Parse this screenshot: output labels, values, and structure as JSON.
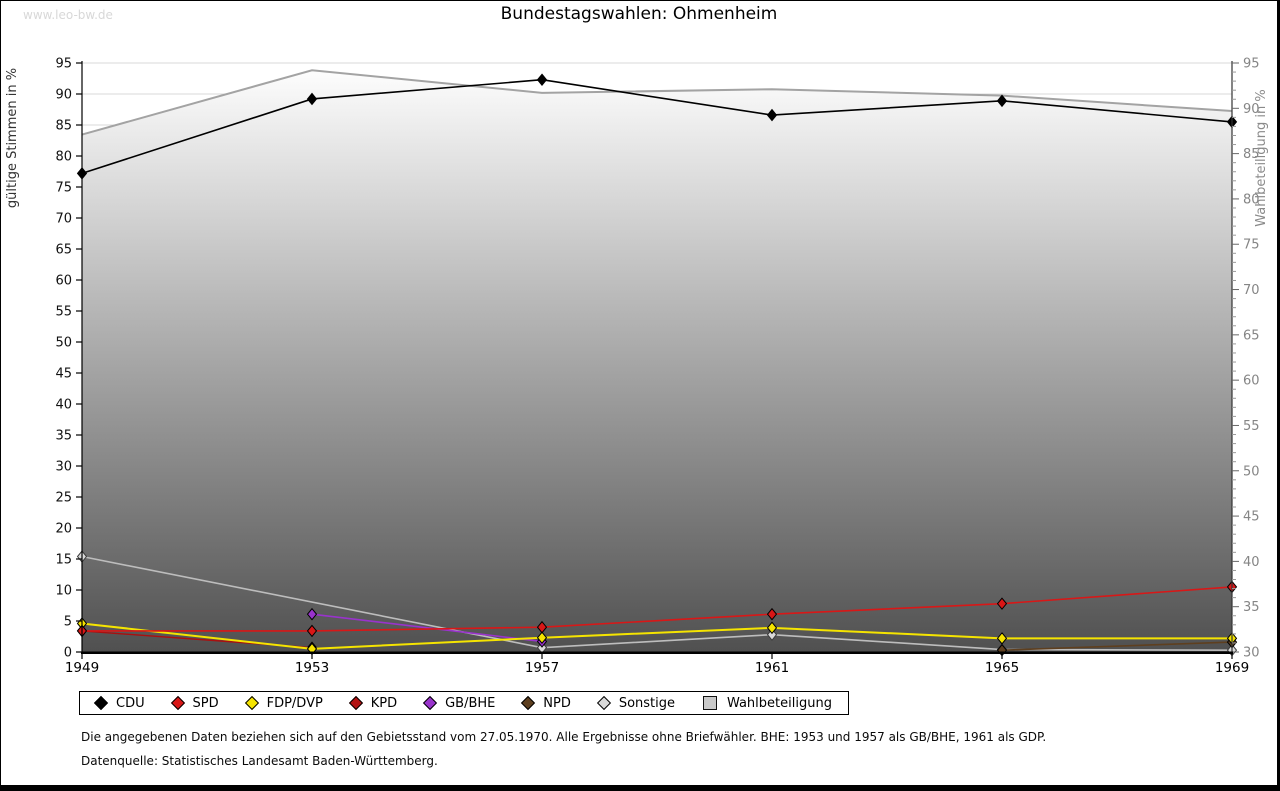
{
  "page": {
    "watermark": "www.leo-bw.de",
    "title": "Bundestagswahlen: Ohmenheim",
    "footnote1": "Die angegebenen Daten beziehen sich auf den Gebietsstand vom 27.05.1970. Alle Ergebnisse ohne Briefwähler. BHE: 1953 und 1957 als GB/BHE, 1961 als GDP.",
    "footnote2": "Datenquelle: Statistisches Landesamt Baden-Württemberg."
  },
  "chart_data": {
    "type": "line",
    "x": [
      "1949",
      "1953",
      "1957",
      "1961",
      "1965",
      "1969"
    ],
    "left_axis": {
      "label": "gültige Stimmen in %",
      "min": 0,
      "max": 95,
      "tick_step": 5
    },
    "right_axis": {
      "label": "Wahlbeteiligung in %",
      "min": 30,
      "max": 95,
      "tick_step": 5,
      "minor_step": 1
    },
    "grid": "horizontal",
    "legend_position": "bottom",
    "series": [
      {
        "name": "CDU",
        "axis": "left",
        "kind": "line",
        "color": "#000000",
        "marker_fill": "#000000",
        "marker_stroke": "#000000",
        "width": 1.6,
        "values": [
          77.2,
          89.2,
          92.3,
          86.6,
          88.9,
          85.5
        ]
      },
      {
        "name": "SPD",
        "axis": "left",
        "kind": "line",
        "color": "#d91717",
        "marker_fill": "#d91717",
        "marker_stroke": "#000000",
        "width": 1.6,
        "values": [
          3.4,
          3.4,
          4.0,
          6.1,
          7.8,
          10.5
        ]
      },
      {
        "name": "FDP/DVP",
        "axis": "left",
        "kind": "line",
        "color": "#f5e400",
        "marker_fill": "#f5e400",
        "marker_stroke": "#000000",
        "width": 2,
        "values": [
          4.6,
          0.5,
          2.3,
          3.9,
          2.2,
          2.2
        ]
      },
      {
        "name": "KPD",
        "axis": "left",
        "kind": "line",
        "color": "#aa0f0f",
        "marker_fill": "#b31212",
        "marker_stroke": "#000000",
        "width": 1.4,
        "values": [
          3.4,
          0.7,
          null,
          null,
          null,
          null
        ]
      },
      {
        "name": "GB/BHE",
        "axis": "left",
        "kind": "line",
        "color": "#9933cc",
        "marker_fill": "#9933cc",
        "marker_stroke": "#000000",
        "width": 1.6,
        "values": [
          null,
          6.1,
          1.7,
          null,
          null,
          null
        ]
      },
      {
        "name": "NPD",
        "axis": "left",
        "kind": "line",
        "color": "#5e3f1f",
        "marker_fill": "#5e3f1f",
        "marker_stroke": "#000000",
        "width": 1.6,
        "values": [
          null,
          null,
          null,
          null,
          0.3,
          1.6
        ]
      },
      {
        "name": "Sonstige",
        "axis": "left",
        "kind": "line",
        "color": "#bdbdbd",
        "marker_fill": "#d9d9d9",
        "marker_stroke": "#3a3a3a",
        "width": 1.6,
        "values": [
          15.4,
          null,
          0.7,
          2.8,
          0.4,
          0.3
        ]
      },
      {
        "name": "Wahlbeteiligung",
        "axis": "right",
        "kind": "area",
        "color": "#a3a3a3",
        "fill_top": "#fdfdfd",
        "fill_bottom": "#505050",
        "width": 2,
        "values": [
          87.1,
          94.2,
          91.7,
          92.1,
          91.4,
          89.7
        ]
      }
    ]
  }
}
